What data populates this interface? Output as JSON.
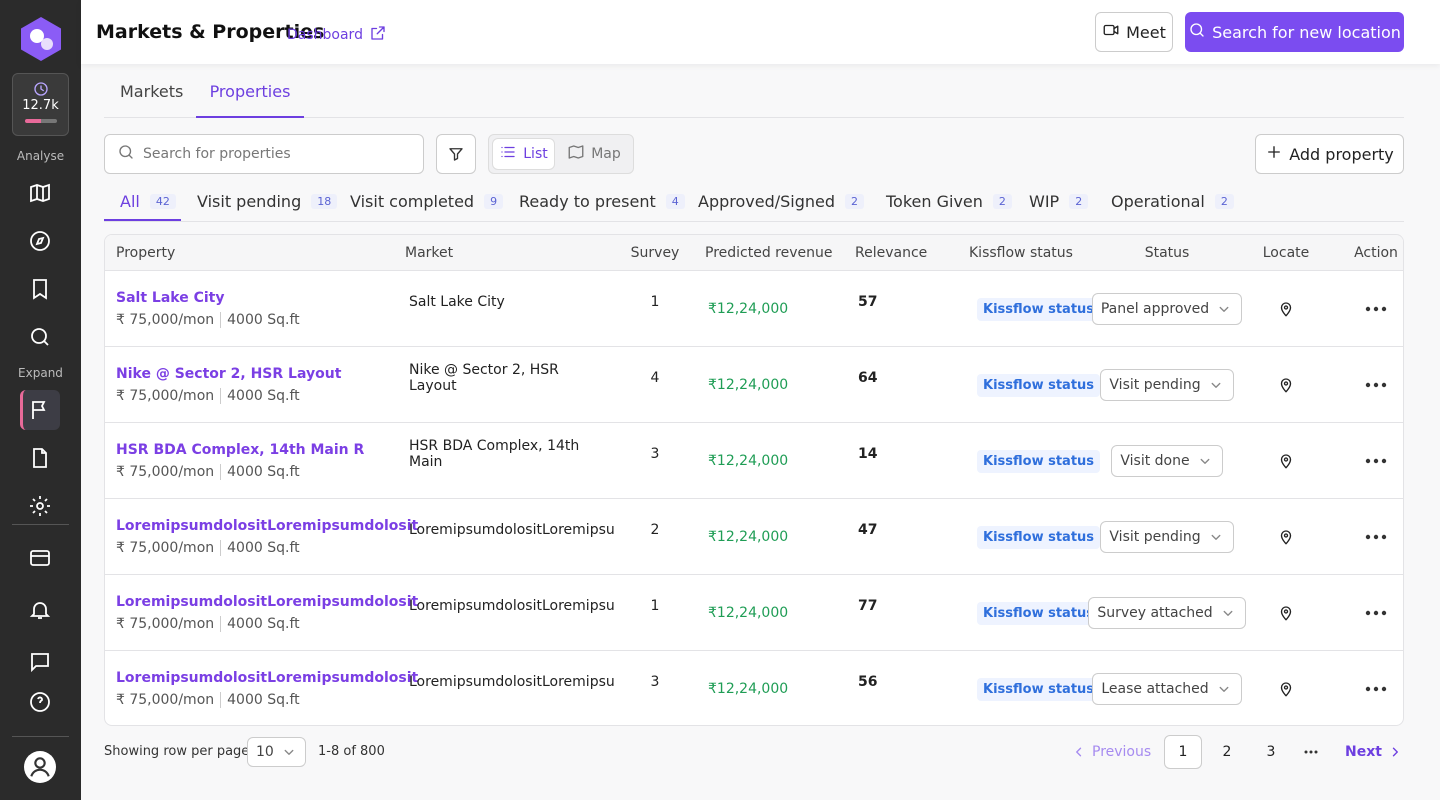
{
  "sidebar": {
    "credits": "12.7k",
    "sections": [
      "Analyse",
      "Expand"
    ]
  },
  "header": {
    "title": "Markets & Properties",
    "link": "Dashboard",
    "meet": "Meet",
    "search_button": "Search for new location"
  },
  "tabs": [
    "Markets",
    "Properties"
  ],
  "toolbar": {
    "search_placeholder": "Search for properties",
    "views": [
      "List",
      "Map"
    ],
    "add": "Add property"
  },
  "filters": [
    {
      "label": "All",
      "count": 42
    },
    {
      "label": "Visit pending",
      "count": 18
    },
    {
      "label": "Visit completed",
      "count": 9
    },
    {
      "label": "Ready to present",
      "count": 4
    },
    {
      "label": "Approved/Signed",
      "count": 2
    },
    {
      "label": "Token Given",
      "count": 2
    },
    {
      "label": "WIP",
      "count": 2
    },
    {
      "label": "Operational",
      "count": 2
    }
  ],
  "table": {
    "columns": [
      "Property",
      "Market",
      "Survey",
      "Predicted revenue",
      "Relevance",
      "Kissflow status",
      "Status",
      "Locate",
      "Action"
    ],
    "rows": [
      {
        "name": "Salt Lake City",
        "rent": "₹ 75,000/mon",
        "area": "4000 Sq.ft",
        "market": "Salt Lake City",
        "survey": 1,
        "revenue": "₹12,24,000",
        "relevance": 57,
        "kissflow": "Kissflow status",
        "status": "Panel approved"
      },
      {
        "name": "Nike @ Sector 2, HSR Layout",
        "rent": "₹ 75,000/mon",
        "area": "4000 Sq.ft",
        "market": "Nike @ Sector 2, HSR Layout",
        "survey": 4,
        "revenue": "₹12,24,000",
        "relevance": 64,
        "kissflow": "Kissflow status",
        "status": "Visit pending"
      },
      {
        "name": "HSR BDA Complex, 14th Main R",
        "rent": "₹ 75,000/mon",
        "area": "4000 Sq.ft",
        "market": "HSR BDA Complex, 14th Main",
        "survey": 3,
        "revenue": "₹12,24,000",
        "relevance": 14,
        "kissflow": "Kissflow status",
        "status": "Visit done"
      },
      {
        "name": "LoremipsumdolositLoremipsumdolosit",
        "rent": "₹ 75,000/mon",
        "area": "4000 Sq.ft",
        "market": "LoremipsumdolositLoremipsu",
        "survey": 2,
        "revenue": "₹12,24,000",
        "relevance": 47,
        "kissflow": "Kissflow status",
        "status": "Visit pending"
      },
      {
        "name": "LoremipsumdolositLoremipsumdolosit",
        "rent": "₹ 75,000/mon",
        "area": "4000 Sq.ft",
        "market": "LoremipsumdolositLoremipsu",
        "survey": 1,
        "revenue": "₹12,24,000",
        "relevance": 77,
        "kissflow": "Kissflow status",
        "status": "Survey attached"
      },
      {
        "name": "LoremipsumdolositLoremipsumdolosit",
        "rent": "₹ 75,000/mon",
        "area": "4000 Sq.ft",
        "market": "LoremipsumdolositLoremipsu",
        "survey": 3,
        "revenue": "₹12,24,000",
        "relevance": 56,
        "kissflow": "Kissflow status",
        "status": "Lease attached"
      }
    ]
  },
  "pagination": {
    "rows_label": "Showing row per page",
    "per_page": "10",
    "range": "1-8 of 800",
    "previous": "Previous",
    "pages": [
      "1",
      "2",
      "3"
    ],
    "next": "Next"
  }
}
